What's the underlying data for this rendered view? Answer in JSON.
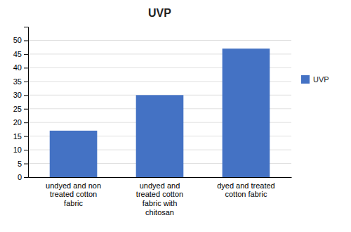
{
  "chart_data": {
    "type": "bar",
    "title": "UVP",
    "categories": [
      "undyed and non\ntreated cotton\nfabric",
      "undyed and\ntreated cotton\nfabric with\nchitosan",
      "dyed and treated\ncotton fabric"
    ],
    "series": [
      {
        "name": "UVP",
        "color": "#4472C4",
        "values": [
          17,
          30,
          47
        ]
      }
    ],
    "ylim": [
      0,
      55
    ],
    "yticks": [
      0,
      5,
      10,
      15,
      20,
      25,
      30,
      35,
      40,
      45,
      50
    ],
    "grid": true,
    "legend": "right"
  }
}
